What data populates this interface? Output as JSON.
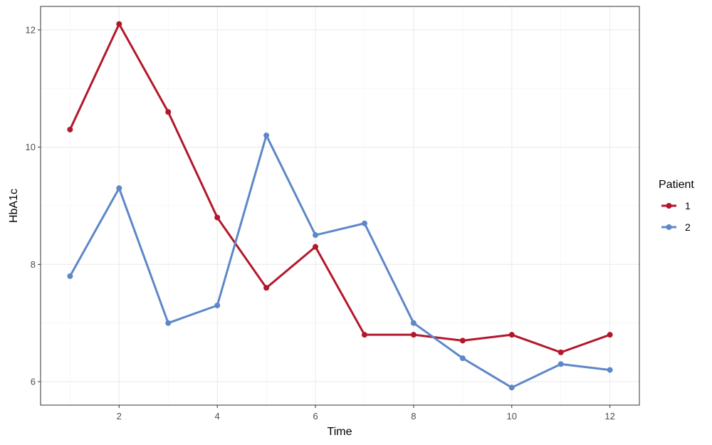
{
  "chart_data": {
    "type": "line",
    "xlabel": "Time",
    "ylabel": "HbA1c",
    "xlim": [
      0.4,
      12.6
    ],
    "ylim": [
      5.6,
      12.4
    ],
    "x_ticks": [
      2,
      4,
      6,
      8,
      10,
      12
    ],
    "x_tick_labels": [
      "2",
      "4",
      "6",
      "8",
      "10",
      "12"
    ],
    "y_ticks": [
      6,
      8,
      10,
      12
    ],
    "y_tick_labels": [
      "6",
      "8",
      "10",
      "12"
    ],
    "grid": true,
    "legend": {
      "title": "Patient",
      "placement": "right"
    },
    "x": [
      1,
      2,
      3,
      4,
      5,
      6,
      7,
      8,
      9,
      10,
      11,
      12
    ],
    "series": [
      {
        "name": "1",
        "color": "#b2182b",
        "values": [
          10.3,
          12.1,
          10.6,
          8.8,
          7.6,
          8.3,
          6.8,
          6.8,
          6.7,
          6.8,
          6.5,
          6.8
        ]
      },
      {
        "name": "2",
        "color": "#5e87c8",
        "values": [
          7.8,
          9.3,
          7.0,
          7.3,
          10.2,
          8.5,
          8.7,
          7.0,
          6.4,
          5.9,
          6.3,
          6.2
        ]
      }
    ]
  }
}
